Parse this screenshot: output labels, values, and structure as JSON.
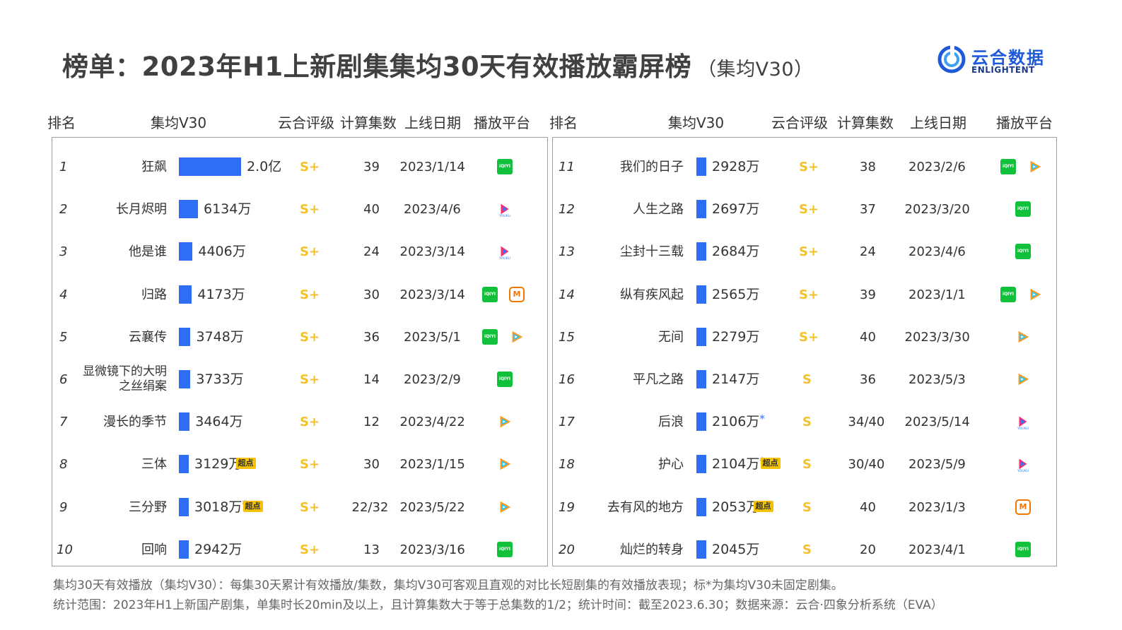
{
  "title": "榜单：2023年H1上新剧集集均30天有效播放霸屏榜",
  "subtitle": "（集均V30）",
  "logo": {
    "cn": "云合数据",
    "en": "ENLIGHTENT"
  },
  "headers": [
    "排名",
    "集均V30",
    "云合评级",
    "计算集数",
    "上线日期",
    "播放平台"
  ],
  "footnotes": [
    "集均30天有效播放（集均V30）：每集30天累计有效播放/集数，集均V30可客观且直观的对比长短剧集的有效播放表现；标*为集均V30未固定剧集。",
    "统计范围：2023年H1上新国产剧集，单集时长20min及以上，且计算集数大于等于总集数的1/2；统计时间：截至2023.6.30；数据来源：云合·四象分析系统（EVA）"
  ],
  "colors": {
    "bar": "#2e6ef5",
    "grade": "#f3c22b",
    "tag": "#f5c200",
    "iqiyi": "#12c13b",
    "mango": "#f07800"
  },
  "chart_data": {
    "type": "bar",
    "unit": "万",
    "items": [
      {
        "rank": "1",
        "name": "狂飙",
        "value": 20000,
        "label": "2.0亿",
        "star": false,
        "tag": "",
        "grade": "S+",
        "episodes": "39",
        "date": "2023/1/14",
        "platforms": [
          "iqiyi"
        ]
      },
      {
        "rank": "2",
        "name": "长月烬明",
        "value": 6134,
        "label": "6134万",
        "star": false,
        "tag": "",
        "grade": "S+",
        "episodes": "40",
        "date": "2023/4/6",
        "platforms": [
          "youku"
        ]
      },
      {
        "rank": "3",
        "name": "他是谁",
        "value": 4406,
        "label": "4406万",
        "star": false,
        "tag": "",
        "grade": "S+",
        "episodes": "24",
        "date": "2023/3/14",
        "platforms": [
          "youku"
        ]
      },
      {
        "rank": "4",
        "name": "归路",
        "value": 4173,
        "label": "4173万",
        "star": false,
        "tag": "",
        "grade": "S+",
        "episodes": "30",
        "date": "2023/3/14",
        "platforms": [
          "iqiyi",
          "mango"
        ]
      },
      {
        "rank": "5",
        "name": "云襄传",
        "value": 3748,
        "label": "3748万",
        "star": false,
        "tag": "",
        "grade": "S+",
        "episodes": "36",
        "date": "2023/5/1",
        "platforms": [
          "iqiyi",
          "tencent"
        ]
      },
      {
        "rank": "6",
        "name": "显微镜下的大明之丝绢案",
        "value": 3733,
        "label": "3733万",
        "star": false,
        "tag": "",
        "grade": "S+",
        "episodes": "14",
        "date": "2023/2/9",
        "platforms": [
          "iqiyi"
        ]
      },
      {
        "rank": "7",
        "name": "漫长的季节",
        "value": 3464,
        "label": "3464万",
        "star": false,
        "tag": "",
        "grade": "S+",
        "episodes": "12",
        "date": "2023/4/22",
        "platforms": [
          "tencent"
        ]
      },
      {
        "rank": "8",
        "name": "三体",
        "value": 3129,
        "label": "3129万",
        "star": false,
        "tag": "超点",
        "grade": "S+",
        "episodes": "30",
        "date": "2023/1/15",
        "platforms": [
          "tencent"
        ]
      },
      {
        "rank": "9",
        "name": "三分野",
        "value": 3018,
        "label": "3018万",
        "star": true,
        "tag": "超点",
        "grade": "S+",
        "episodes": "22/32",
        "date": "2023/5/22",
        "platforms": [
          "tencent"
        ]
      },
      {
        "rank": "10",
        "name": "回响",
        "value": 2942,
        "label": "2942万",
        "star": false,
        "tag": "",
        "grade": "S+",
        "episodes": "13",
        "date": "2023/3/16",
        "platforms": [
          "iqiyi"
        ]
      },
      {
        "rank": "11",
        "name": "我们的日子",
        "value": 2928,
        "label": "2928万",
        "star": false,
        "tag": "",
        "grade": "S+",
        "episodes": "38",
        "date": "2023/2/6",
        "platforms": [
          "iqiyi",
          "tencent"
        ]
      },
      {
        "rank": "12",
        "name": "人生之路",
        "value": 2697,
        "label": "2697万",
        "star": false,
        "tag": "",
        "grade": "S+",
        "episodes": "37",
        "date": "2023/3/20",
        "platforms": [
          "iqiyi"
        ]
      },
      {
        "rank": "13",
        "name": "尘封十三载",
        "value": 2684,
        "label": "2684万",
        "star": false,
        "tag": "",
        "grade": "S+",
        "episodes": "24",
        "date": "2023/4/6",
        "platforms": [
          "iqiyi"
        ]
      },
      {
        "rank": "14",
        "name": "纵有疾风起",
        "value": 2565,
        "label": "2565万",
        "star": false,
        "tag": "",
        "grade": "S+",
        "episodes": "39",
        "date": "2023/1/1",
        "platforms": [
          "iqiyi",
          "tencent"
        ]
      },
      {
        "rank": "15",
        "name": "无间",
        "value": 2279,
        "label": "2279万",
        "star": false,
        "tag": "",
        "grade": "S+",
        "episodes": "40",
        "date": "2023/3/30",
        "platforms": [
          "tencent"
        ]
      },
      {
        "rank": "16",
        "name": "平凡之路",
        "value": 2147,
        "label": "2147万",
        "star": false,
        "tag": "",
        "grade": "S",
        "episodes": "36",
        "date": "2023/5/3",
        "platforms": [
          "tencent"
        ]
      },
      {
        "rank": "17",
        "name": "后浪",
        "value": 2106,
        "label": "2106万",
        "star": true,
        "tag": "",
        "grade": "S",
        "episodes": "34/40",
        "date": "2023/5/14",
        "platforms": [
          "youku"
        ]
      },
      {
        "rank": "18",
        "name": "护心",
        "value": 2104,
        "label": "2104万",
        "star": true,
        "tag": "超点",
        "grade": "S",
        "episodes": "30/40",
        "date": "2023/5/9",
        "platforms": [
          "youku"
        ]
      },
      {
        "rank": "19",
        "name": "去有风的地方",
        "value": 2053,
        "label": "2053万",
        "star": false,
        "tag": "超点",
        "grade": "S",
        "episodes": "40",
        "date": "2023/1/3",
        "platforms": [
          "mango"
        ]
      },
      {
        "rank": "20",
        "name": "灿烂的转身",
        "value": 2045,
        "label": "2045万",
        "star": false,
        "tag": "",
        "grade": "S",
        "episodes": "20",
        "date": "2023/4/1",
        "platforms": [
          "iqiyi"
        ]
      }
    ]
  }
}
